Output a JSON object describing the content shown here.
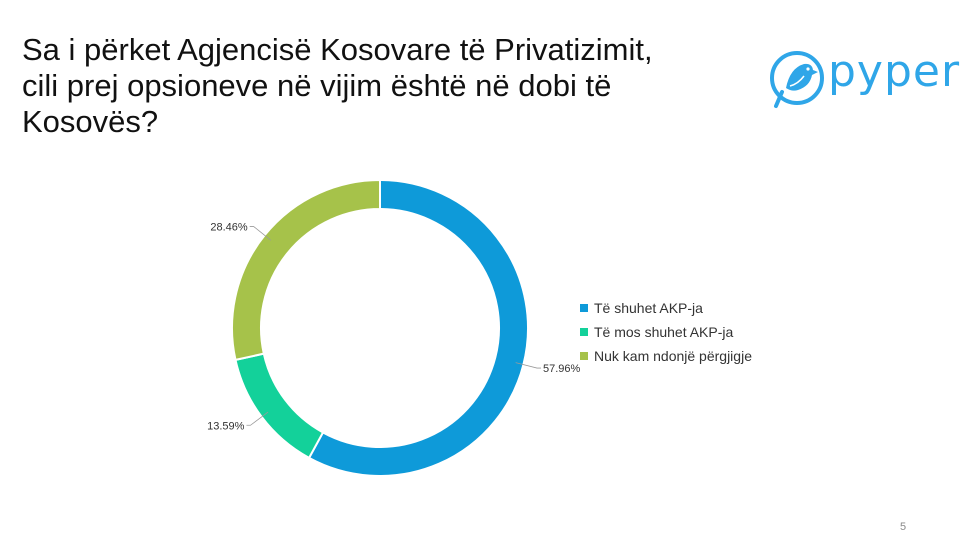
{
  "slide": {
    "title_lines": [
      "Sa i përket Agjencisë Kosovare të Privatizimit,",
      "cili prej opsioneve në vijim është në dobi të",
      "Kosovës?"
    ],
    "logo_text": "pyper",
    "page_number": "5"
  },
  "chart_data": {
    "type": "pie",
    "style": "doughnut",
    "title": "Sa i përket Agjencisë Kosovare të Privatizimit, cili prej opsioneve në vijim është në dobi të Kosovës?",
    "categories": [
      "Të shuhet AKP-ja",
      "Të mos shuhet AKP-ja",
      "Nuk kam ndonjë përgjigje"
    ],
    "values": [
      57.96,
      13.59,
      28.46
    ],
    "labels": [
      "57.96%",
      "13.59%",
      "28.46%"
    ],
    "colors": [
      "#0e9ad9",
      "#13d19a",
      "#a6c24a"
    ],
    "legend_position": "right"
  }
}
